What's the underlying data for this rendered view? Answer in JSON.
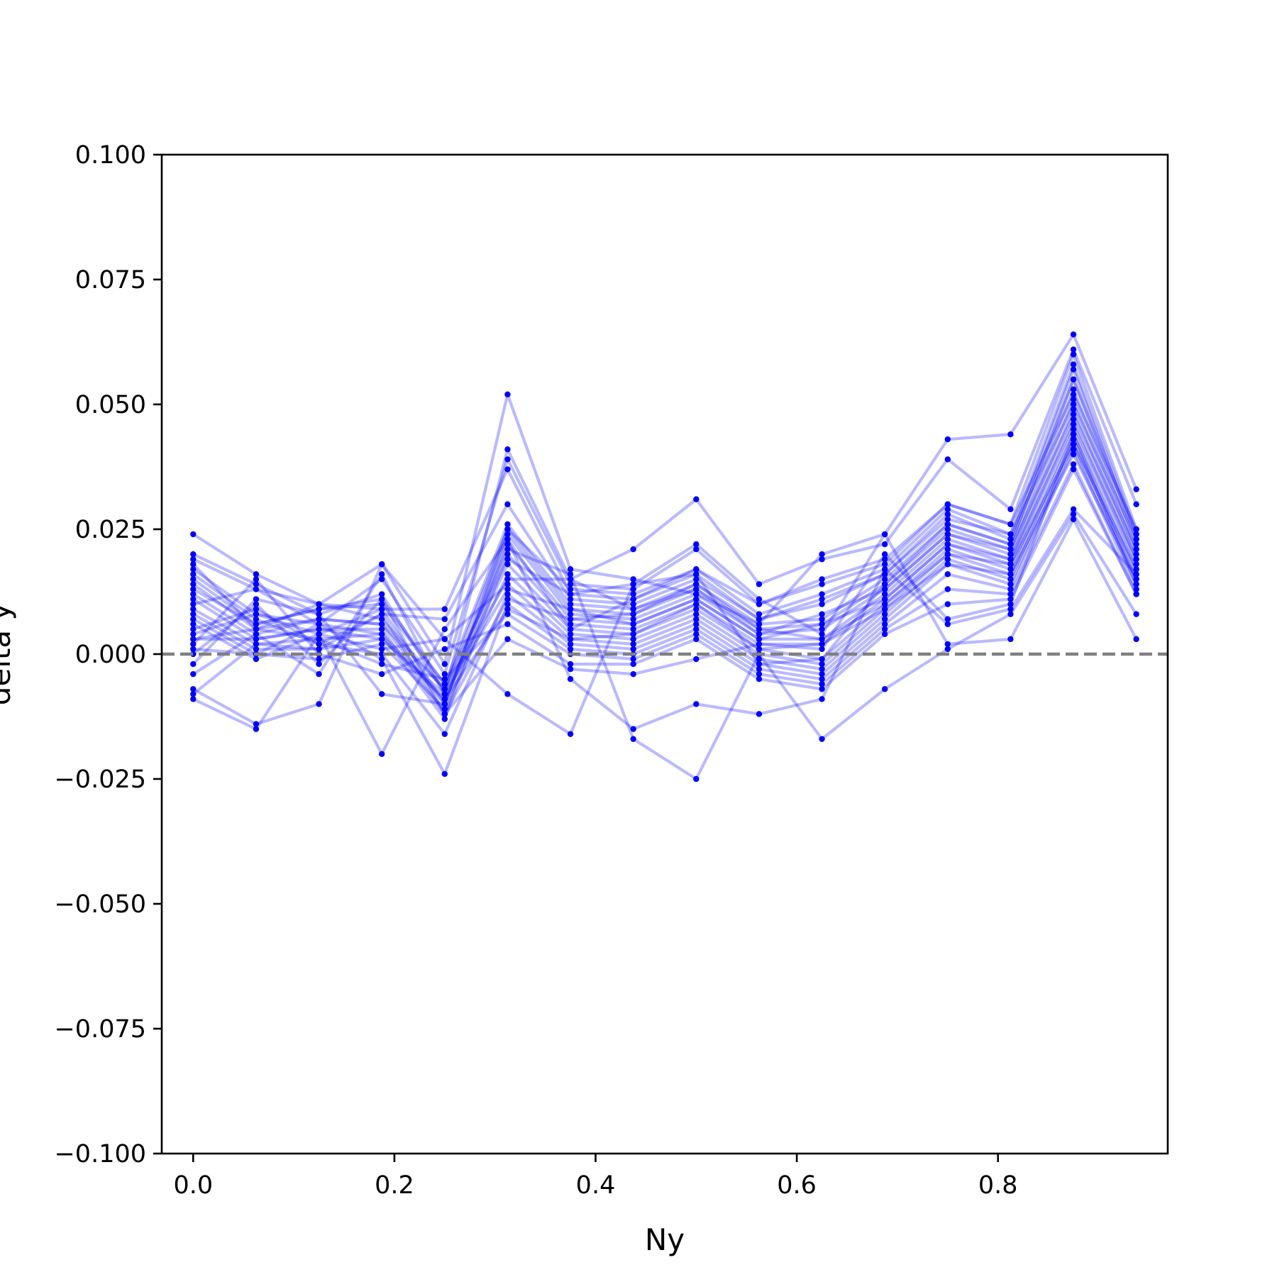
{
  "chart_data": {
    "type": "line",
    "title": "",
    "xlabel": "Ny",
    "ylabel": "delta y",
    "xlim": [
      -0.03125,
      0.96875
    ],
    "ylim": [
      -0.1,
      0.1
    ],
    "x_ticks": [
      {
        "value": 0.0,
        "label": "0.0"
      },
      {
        "value": 0.2,
        "label": "0.2"
      },
      {
        "value": 0.4,
        "label": "0.4"
      },
      {
        "value": 0.6,
        "label": "0.6"
      },
      {
        "value": 0.8,
        "label": "0.8"
      }
    ],
    "y_ticks": [
      {
        "value": 0.1,
        "label": "0.100"
      },
      {
        "value": 0.075,
        "label": "0.075"
      },
      {
        "value": 0.05,
        "label": "0.050"
      },
      {
        "value": 0.025,
        "label": "0.025"
      },
      {
        "value": 0.0,
        "label": "0.000"
      },
      {
        "value": -0.025,
        "label": "−0.025"
      },
      {
        "value": -0.05,
        "label": "−0.050"
      },
      {
        "value": -0.075,
        "label": "−0.075"
      },
      {
        "value": -0.1,
        "label": "−0.100"
      }
    ],
    "reference_line": {
      "y": 0.0,
      "style": "dashed",
      "color": "#808080"
    },
    "colors": {
      "series": "#0000ff"
    },
    "grid": false,
    "legend": "none",
    "x": [
      0.0,
      0.0625,
      0.125,
      0.1875,
      0.25,
      0.3125,
      0.375,
      0.4375,
      0.5,
      0.5625,
      0.625,
      0.6875,
      0.75,
      0.8125,
      0.875,
      0.9375
    ],
    "series": [
      {
        "values": [
          0.024,
          0.016,
          0.01,
          0.018,
          -0.002,
          0.052,
          0.017,
          0.015,
          0.012,
          0.006,
          0.02,
          0.024,
          0.043,
          0.044,
          0.064,
          0.033
        ]
      },
      {
        "values": [
          0.02,
          0.014,
          0.008,
          0.012,
          -0.008,
          0.041,
          0.015,
          0.021,
          0.031,
          0.014,
          0.019,
          0.022,
          0.039,
          0.029,
          0.061,
          0.03
        ]
      },
      {
        "values": [
          0.019,
          0.013,
          0.006,
          0.015,
          -0.004,
          0.039,
          0.014,
          0.013,
          0.021,
          0.01,
          0.015,
          0.019,
          0.03,
          0.026,
          0.06,
          0.025
        ]
      },
      {
        "values": [
          0.017,
          0.008,
          0.004,
          0.009,
          0.009,
          0.037,
          0.012,
          0.011,
          0.017,
          0.008,
          0.012,
          0.017,
          0.029,
          0.024,
          0.058,
          0.024
        ]
      },
      {
        "values": [
          0.016,
          0.007,
          0.002,
          0.008,
          0.007,
          0.03,
          0.011,
          0.01,
          0.015,
          0.007,
          0.01,
          0.016,
          0.028,
          0.023,
          0.057,
          0.023
        ]
      },
      {
        "values": [
          0.015,
          0.006,
          0.009,
          0.01,
          -0.006,
          0.026,
          0.01,
          0.009,
          0.014,
          0.006,
          0.007,
          0.015,
          0.026,
          0.022,
          0.055,
          0.022
        ]
      },
      {
        "values": [
          0.014,
          0.005,
          0.01,
          0.007,
          -0.007,
          0.025,
          0.009,
          0.008,
          0.013,
          0.005,
          0.006,
          0.014,
          0.025,
          0.021,
          0.053,
          0.021
        ]
      },
      {
        "values": [
          0.012,
          0.004,
          0.007,
          0.006,
          -0.01,
          0.024,
          0.008,
          0.007,
          0.012,
          0.004,
          0.005,
          0.013,
          0.024,
          0.02,
          0.051,
          0.02
        ]
      },
      {
        "values": [
          0.011,
          0.003,
          0.005,
          0.005,
          -0.012,
          0.022,
          0.007,
          0.006,
          0.011,
          0.003,
          0.003,
          0.012,
          0.023,
          0.019,
          0.049,
          0.019
        ]
      },
      {
        "values": [
          0.009,
          0.002,
          0.003,
          0.004,
          -0.013,
          0.02,
          0.006,
          0.005,
          0.01,
          0.002,
          0.002,
          0.011,
          0.022,
          0.018,
          0.047,
          0.018
        ]
      },
      {
        "values": [
          0.008,
          0.001,
          0.001,
          0.003,
          -0.009,
          0.018,
          0.005,
          0.004,
          0.009,
          0.001,
          -0.001,
          0.01,
          0.021,
          0.017,
          0.045,
          0.017
        ]
      },
      {
        "values": [
          0.007,
          0.0,
          -0.001,
          0.002,
          -0.011,
          0.016,
          0.004,
          0.003,
          0.008,
          0.0,
          -0.002,
          0.009,
          0.02,
          0.016,
          0.044,
          0.016
        ]
      },
      {
        "values": [
          0.006,
          -0.001,
          0.004,
          0.001,
          0.003,
          0.014,
          0.003,
          0.002,
          0.007,
          -0.001,
          -0.003,
          0.008,
          0.019,
          0.015,
          0.043,
          0.015
        ]
      },
      {
        "values": [
          0.005,
          0.009,
          0.002,
          0.0,
          -0.016,
          0.012,
          0.002,
          0.001,
          0.006,
          -0.002,
          -0.004,
          0.007,
          0.018,
          0.014,
          0.042,
          0.014
        ]
      },
      {
        "values": [
          0.004,
          0.008,
          0.006,
          -0.001,
          -0.024,
          0.01,
          0.001,
          0.0,
          0.005,
          -0.003,
          -0.005,
          0.006,
          0.016,
          0.013,
          0.041,
          0.013
        ]
      },
      {
        "values": [
          0.003,
          0.005,
          0.003,
          -0.002,
          -0.005,
          0.008,
          0.0,
          -0.001,
          0.004,
          -0.004,
          -0.006,
          0.005,
          0.013,
          0.012,
          0.038,
          0.012
        ]
      },
      {
        "values": [
          0.002,
          0.015,
          0.0,
          -0.004,
          0.001,
          0.006,
          -0.002,
          -0.002,
          0.003,
          -0.005,
          -0.007,
          0.004,
          0.01,
          0.011,
          0.037,
          0.012
        ]
      },
      {
        "values": [
          0.0,
          0.01,
          -0.002,
          0.011,
          -0.012,
          0.003,
          -0.003,
          -0.004,
          -0.001,
          0.002,
          0.001,
          0.02,
          0.007,
          0.01,
          0.044,
          0.014
        ]
      },
      {
        "values": [
          -0.002,
          0.011,
          0.008,
          -0.008,
          -0.01,
          0.023,
          -0.005,
          -0.015,
          -0.01,
          -0.012,
          -0.009,
          0.017,
          0.006,
          0.009,
          0.029,
          0.016
        ]
      },
      {
        "values": [
          -0.004,
          0.004,
          -0.004,
          0.016,
          -0.008,
          0.021,
          0.016,
          -0.017,
          -0.025,
          0.0,
          -0.017,
          -0.007,
          0.001,
          0.008,
          0.028,
          0.008
        ]
      },
      {
        "values": [
          -0.007,
          -0.014,
          -0.01,
          0.018,
          0.003,
          -0.008,
          -0.016,
          0.014,
          0.022,
          0.011,
          0.004,
          0.024,
          0.002,
          0.003,
          0.027,
          0.003
        ]
      },
      {
        "values": [
          -0.009,
          -0.015,
          0.004,
          -0.02,
          0.005,
          0.023,
          0.005,
          0.011,
          0.016,
          -0.002,
          -0.001,
          0.014,
          0.026,
          0.022,
          0.055,
          0.024
        ]
      },
      {
        "values": [
          0.01,
          0.013,
          0.01,
          0.009,
          -0.01,
          0.025,
          0.013,
          0.012,
          0.017,
          0.01,
          0.014,
          0.018,
          0.03,
          0.026,
          0.052,
          0.025
        ]
      },
      {
        "values": [
          0.013,
          0.006,
          0.009,
          0.011,
          -0.006,
          0.019,
          0.012,
          0.014,
          0.016,
          0.007,
          0.011,
          0.016,
          0.027,
          0.024,
          0.05,
          0.023
        ]
      },
      {
        "values": [
          0.018,
          0.005,
          0.007,
          0.006,
          -0.007,
          0.015,
          0.015,
          0.009,
          0.013,
          0.004,
          0.008,
          0.013,
          0.024,
          0.021,
          0.048,
          0.021
        ]
      },
      {
        "values": [
          0.003,
          0.003,
          0.005,
          0.003,
          -0.008,
          0.013,
          0.009,
          0.006,
          0.011,
          0.003,
          0.006,
          0.011,
          0.022,
          0.019,
          0.046,
          0.019
        ]
      },
      {
        "values": [
          -0.008,
          0.002,
          0.001,
          0.008,
          -0.012,
          0.011,
          0.007,
          0.008,
          0.014,
          0.005,
          0.003,
          0.01,
          0.02,
          0.018,
          0.042,
          0.017
        ]
      },
      {
        "values": [
          0.001,
          0.0,
          0.006,
          0.004,
          -0.009,
          0.009,
          0.003,
          0.004,
          0.01,
          0.001,
          0.002,
          0.009,
          0.018,
          0.016,
          0.04,
          0.015
        ]
      }
    ]
  }
}
